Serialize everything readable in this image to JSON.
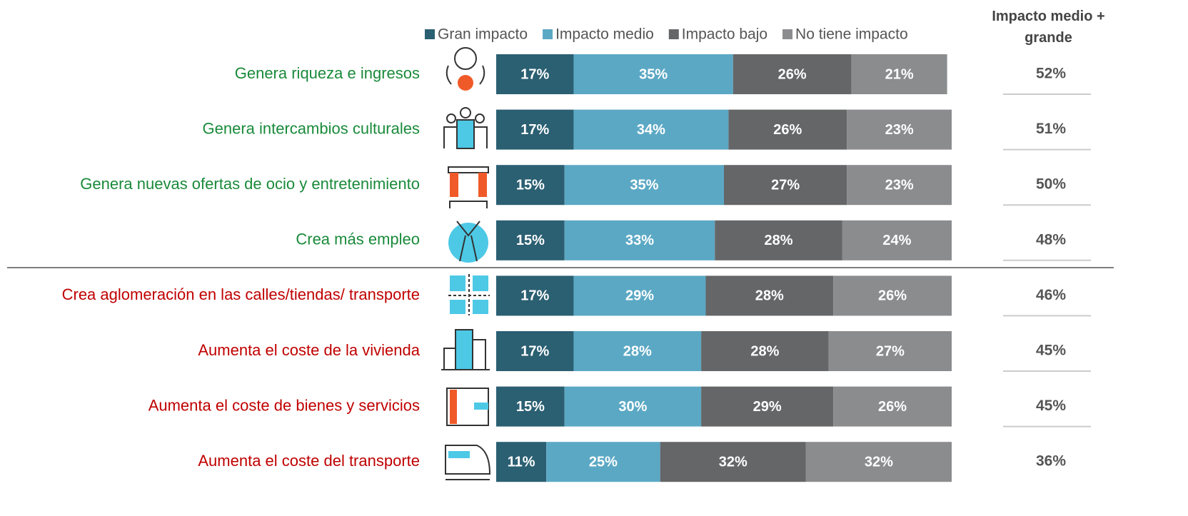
{
  "chart_data": {
    "type": "stacked-bar",
    "orientation": "horizontal",
    "categories": [
      "Genera riqueza e ingresos",
      "Genera intercambios culturales",
      "Genera nuevas ofertas de ocio y entretenimiento",
      "Crea más empleo",
      "Crea aglomeración en las calles/tiendas/ transporte",
      "Aumenta el coste de la vivienda",
      "Aumenta el coste de bienes y servicios",
      "Aumenta el coste del transporte"
    ],
    "category_colors": [
      "#1a8a3a",
      "#1a8a3a",
      "#1a8a3a",
      "#1a8a3a",
      "#c00000",
      "#c00000",
      "#c00000",
      "#c00000"
    ],
    "xlim": [
      0,
      100
    ],
    "legend": "top",
    "series": [
      {
        "name": "Gran impacto",
        "color": "#2b5f72",
        "values": [
          17,
          17,
          15,
          15,
          17,
          17,
          15,
          11
        ],
        "value_labels": [
          "17%",
          "17%",
          "15%",
          "15%",
          "17%",
          "17%",
          "15%",
          "11%"
        ]
      },
      {
        "name": "Impacto medio",
        "color": "#5ba8c4",
        "values": [
          35,
          34,
          35,
          33,
          29,
          28,
          30,
          25
        ],
        "value_labels": [
          "35%",
          "34%",
          "35%",
          "33%",
          "29%",
          "28%",
          "30%",
          "25%"
        ]
      },
      {
        "name": "Impacto bajo",
        "color": "#656668",
        "values": [
          26,
          26,
          27,
          28,
          28,
          28,
          29,
          32
        ],
        "value_labels": [
          "26%",
          "26%",
          "27%",
          "28%",
          "28%",
          "28%",
          "29%",
          "32%"
        ]
      },
      {
        "name": "No tiene impacto",
        "color": "#8b8c8e",
        "values": [
          21,
          23,
          23,
          24,
          26,
          27,
          26,
          32
        ],
        "value_labels": [
          "21%",
          "23%",
          "23%",
          "24%",
          "26%",
          "27%",
          "26%",
          "32%"
        ]
      }
    ],
    "summary": {
      "title": "Impacto medio + grande",
      "values": [
        52,
        51,
        50,
        48,
        46,
        45,
        45,
        36
      ],
      "value_labels": [
        "52%",
        "51%",
        "50%",
        "48%",
        "46%",
        "45%",
        "45%",
        "36%"
      ]
    }
  }
}
